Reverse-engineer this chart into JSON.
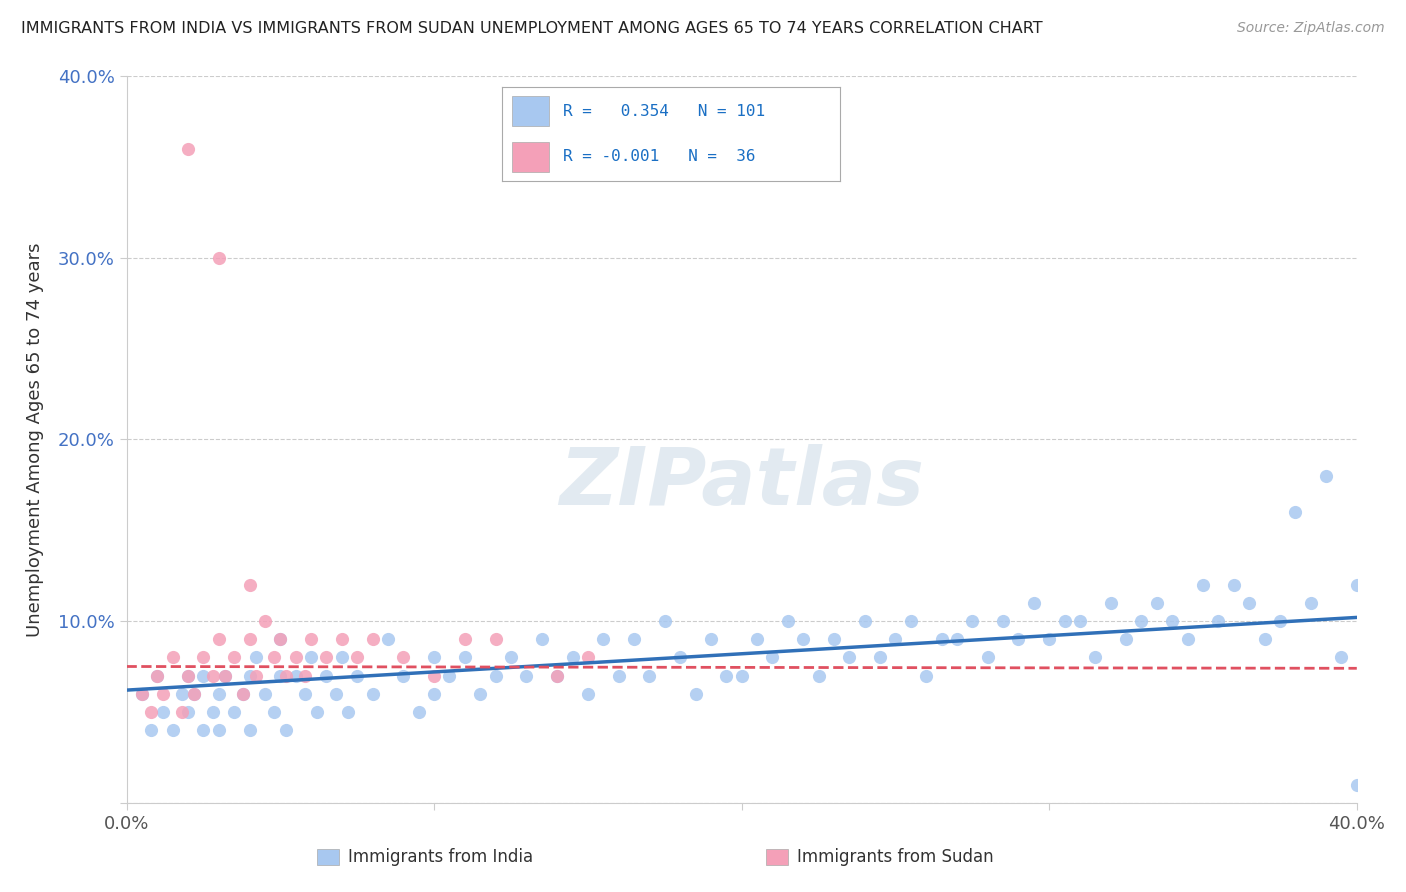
{
  "title": "IMMIGRANTS FROM INDIA VS IMMIGRANTS FROM SUDAN UNEMPLOYMENT AMONG AGES 65 TO 74 YEARS CORRELATION CHART",
  "source": "Source: ZipAtlas.com",
  "ylabel": "Unemployment Among Ages 65 to 74 years",
  "xlim": [
    0.0,
    0.4
  ],
  "ylim": [
    0.0,
    0.4
  ],
  "india_R": 0.354,
  "india_N": 101,
  "sudan_R": -0.001,
  "sudan_N": 36,
  "india_color": "#a8c8f0",
  "sudan_color": "#f4a0b8",
  "india_line_color": "#3070b8",
  "sudan_line_color": "#e05060",
  "watermark": "ZIPatlas",
  "background_color": "#ffffff",
  "india_scatter_x": [
    0.005,
    0.008,
    0.01,
    0.012,
    0.015,
    0.018,
    0.02,
    0.02,
    0.022,
    0.025,
    0.025,
    0.028,
    0.03,
    0.03,
    0.032,
    0.035,
    0.038,
    0.04,
    0.04,
    0.042,
    0.045,
    0.048,
    0.05,
    0.05,
    0.052,
    0.055,
    0.058,
    0.06,
    0.062,
    0.065,
    0.068,
    0.07,
    0.072,
    0.075,
    0.08,
    0.085,
    0.09,
    0.095,
    0.1,
    0.1,
    0.105,
    0.11,
    0.115,
    0.12,
    0.125,
    0.13,
    0.135,
    0.14,
    0.145,
    0.15,
    0.155,
    0.16,
    0.165,
    0.17,
    0.175,
    0.18,
    0.185,
    0.19,
    0.195,
    0.2,
    0.205,
    0.21,
    0.215,
    0.22,
    0.225,
    0.23,
    0.235,
    0.24,
    0.245,
    0.25,
    0.255,
    0.26,
    0.265,
    0.27,
    0.275,
    0.28,
    0.285,
    0.29,
    0.295,
    0.3,
    0.305,
    0.31,
    0.315,
    0.32,
    0.325,
    0.33,
    0.335,
    0.34,
    0.345,
    0.35,
    0.355,
    0.36,
    0.365,
    0.37,
    0.375,
    0.38,
    0.385,
    0.39,
    0.395,
    0.4,
    0.4
  ],
  "india_scatter_y": [
    0.06,
    0.04,
    0.07,
    0.05,
    0.04,
    0.06,
    0.05,
    0.07,
    0.06,
    0.04,
    0.07,
    0.05,
    0.06,
    0.04,
    0.07,
    0.05,
    0.06,
    0.07,
    0.04,
    0.08,
    0.06,
    0.05,
    0.07,
    0.09,
    0.04,
    0.07,
    0.06,
    0.08,
    0.05,
    0.07,
    0.06,
    0.08,
    0.05,
    0.07,
    0.06,
    0.09,
    0.07,
    0.05,
    0.08,
    0.06,
    0.07,
    0.08,
    0.06,
    0.07,
    0.08,
    0.07,
    0.09,
    0.07,
    0.08,
    0.06,
    0.09,
    0.07,
    0.09,
    0.07,
    0.1,
    0.08,
    0.06,
    0.09,
    0.07,
    0.07,
    0.09,
    0.08,
    0.1,
    0.09,
    0.07,
    0.09,
    0.08,
    0.1,
    0.08,
    0.09,
    0.1,
    0.07,
    0.09,
    0.09,
    0.1,
    0.08,
    0.1,
    0.09,
    0.11,
    0.09,
    0.1,
    0.1,
    0.08,
    0.11,
    0.09,
    0.1,
    0.11,
    0.1,
    0.09,
    0.12,
    0.1,
    0.12,
    0.11,
    0.09,
    0.1,
    0.16,
    0.11,
    0.18,
    0.08,
    0.01,
    0.12
  ],
  "sudan_scatter_x": [
    0.005,
    0.008,
    0.01,
    0.012,
    0.015,
    0.018,
    0.02,
    0.022,
    0.025,
    0.028,
    0.03,
    0.032,
    0.035,
    0.038,
    0.04,
    0.042,
    0.045,
    0.048,
    0.05,
    0.052,
    0.055,
    0.058,
    0.06,
    0.065,
    0.07,
    0.075,
    0.08,
    0.09,
    0.1,
    0.11,
    0.12,
    0.14,
    0.15,
    0.02,
    0.03,
    0.04
  ],
  "sudan_scatter_y": [
    0.06,
    0.05,
    0.07,
    0.06,
    0.08,
    0.05,
    0.07,
    0.06,
    0.08,
    0.07,
    0.09,
    0.07,
    0.08,
    0.06,
    0.09,
    0.07,
    0.1,
    0.08,
    0.09,
    0.07,
    0.08,
    0.07,
    0.09,
    0.08,
    0.09,
    0.08,
    0.09,
    0.08,
    0.07,
    0.09,
    0.09,
    0.07,
    0.08,
    0.36,
    0.3,
    0.12
  ],
  "india_line_x": [
    0.0,
    0.4
  ],
  "india_line_y": [
    0.062,
    0.102
  ],
  "sudan_line_x": [
    0.0,
    0.4
  ],
  "sudan_line_y": [
    0.075,
    0.074
  ],
  "ytick_positions": [
    0.0,
    0.1,
    0.2,
    0.3,
    0.4
  ],
  "ytick_labels": [
    "",
    "10.0%",
    "20.0%",
    "30.0%",
    "40.0%"
  ],
  "ytick_color": "#4472c4",
  "grid_color": "#cccccc",
  "title_fontsize": 11.5,
  "source_fontsize": 10,
  "ylabel_fontsize": 13,
  "tick_fontsize": 13,
  "legend_india_label": "Immigrants from India",
  "legend_sudan_label": "Immigrants from Sudan"
}
